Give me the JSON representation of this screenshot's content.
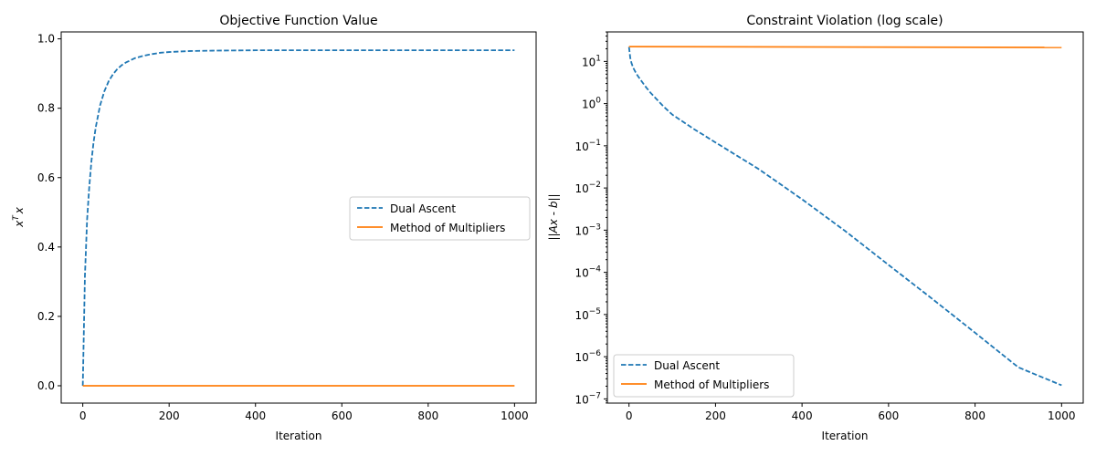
{
  "chart_data": [
    {
      "type": "line",
      "title": "Objective Function Value",
      "xlabel": "Iteration",
      "ylabel": "x^T x",
      "ylabel_base": "x",
      "ylabel_sup": "T",
      "ylabel_tail": "x",
      "xscale": "linear",
      "yscale": "linear",
      "xlim": [
        -50,
        1050
      ],
      "ylim": [
        -0.05,
        1.02
      ],
      "xticks": [
        0,
        200,
        400,
        600,
        800,
        1000
      ],
      "xtick_labels": [
        "0",
        "200",
        "400",
        "600",
        "800",
        "1000"
      ],
      "yticks": [
        0.0,
        0.2,
        0.4,
        0.6,
        0.8,
        1.0
      ],
      "ytick_labels": [
        "0.0",
        "0.2",
        "0.4",
        "0.6",
        "0.8",
        "1.0"
      ],
      "legend_position": "center-right",
      "series": [
        {
          "name": "Dual Ascent",
          "color": "#1f77b4",
          "dash": "dashed",
          "x": [
            0,
            5,
            10,
            15,
            20,
            25,
            30,
            40,
            50,
            60,
            70,
            80,
            90,
            100,
            120,
            140,
            160,
            180,
            200,
            250,
            300,
            400,
            500,
            600,
            700,
            800,
            900,
            1000
          ],
          "y": [
            0.0,
            0.318,
            0.479,
            0.573,
            0.647,
            0.702,
            0.745,
            0.808,
            0.849,
            0.878,
            0.898,
            0.913,
            0.924,
            0.932,
            0.944,
            0.951,
            0.956,
            0.96,
            0.962,
            0.965,
            0.966,
            0.967,
            0.967,
            0.967,
            0.967,
            0.967,
            0.967,
            0.967
          ]
        },
        {
          "name": "Method of Multipliers",
          "color": "#ff7f0e",
          "dash": "solid",
          "x": [
            0,
            1000
          ],
          "y": [
            0.0,
            0.0
          ]
        }
      ]
    },
    {
      "type": "line",
      "title": "Constraint Violation (log scale)",
      "xlabel": "Iteration",
      "ylabel": "||Ax - b||",
      "xscale": "linear",
      "yscale": "log",
      "xlim": [
        -50,
        1050
      ],
      "ylim_exp": [
        -7.1,
        1.7
      ],
      "xticks": [
        0,
        200,
        400,
        600,
        800,
        1000
      ],
      "xtick_labels": [
        "0",
        "200",
        "400",
        "600",
        "800",
        "1000"
      ],
      "yticks_exp": [
        1,
        0,
        -1,
        -2,
        -3,
        -4,
        -5,
        -6,
        -7
      ],
      "ytick_base": "10",
      "ytick_sups": [
        "1",
        "0",
        "−1",
        "−2",
        "−3",
        "−4",
        "−5",
        "−6",
        "−7"
      ],
      "legend_position": "lower-left",
      "series": [
        {
          "name": "Dual Ascent",
          "color": "#1f77b4",
          "dash": "dashed",
          "x": [
            0,
            3,
            6,
            10,
            15,
            20,
            30,
            40,
            50,
            60,
            80,
            100,
            150,
            200,
            250,
            300,
            400,
            500,
            600,
            700,
            800,
            900,
            1000
          ],
          "y": [
            22.0,
            12.0,
            9.0,
            7.0,
            5.6,
            4.6,
            3.3,
            2.4,
            1.8,
            1.4,
            0.85,
            0.55,
            0.25,
            0.12,
            0.058,
            0.028,
            0.0054,
            0.00095,
            0.00015,
            2.4e-05,
            3.7e-06,
            5.6e-07,
            2.1e-07
          ]
        },
        {
          "name": "Method of Multipliers",
          "color": "#ff7f0e",
          "dash": "solid",
          "x": [
            0,
            1000
          ],
          "y": [
            22.5,
            21.5
          ]
        }
      ]
    }
  ]
}
